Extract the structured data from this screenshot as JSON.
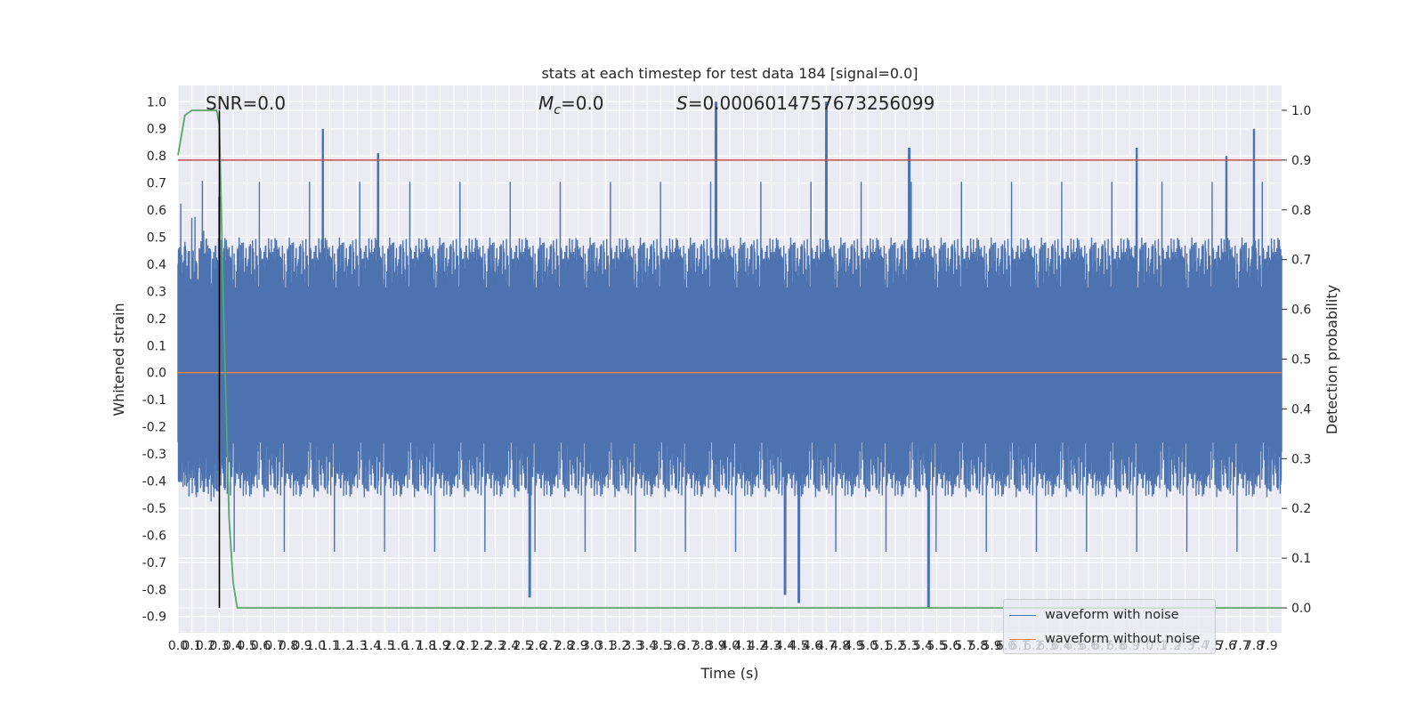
{
  "chart_data": {
    "type": "line",
    "title": "stats at each timestep for test data 184 [signal=0.0]",
    "xlabel": "Time (s)",
    "ylabel_left": "Whitened strain",
    "ylabel_right": "Detection probability",
    "xlim": [
      0.0,
      8.0
    ],
    "ylim_left": [
      -0.96,
      1.06
    ],
    "ylim_right": [
      -0.05,
      1.05
    ],
    "x_tick_labels": [
      "0.0",
      "0.1",
      "0.2",
      "0.3",
      "0.4",
      "0.5",
      "0.6",
      "0.7",
      "0.8",
      "0.9",
      "1.0",
      "1.1",
      "1.2",
      "1.3",
      "1.4",
      "1.5",
      "1.6",
      "1.7",
      "1.8",
      "1.9",
      "2.0",
      "2.1",
      "2.2",
      "2.3",
      "2.4",
      "2.5",
      "2.6",
      "2.7",
      "2.8",
      "2.9",
      "3.0",
      "3.1",
      "3.2",
      "3.3",
      "3.4",
      "3.5",
      "3.6",
      "3.7",
      "3.8",
      "3.9",
      "4.0",
      "4.1",
      "4.2",
      "4.3",
      "4.4",
      "4.5",
      "4.6",
      "4.7",
      "4.8",
      "4.9",
      "5.0",
      "5.1",
      "5.2",
      "5.3",
      "5.4",
      "5.5",
      "5.6",
      "5.7",
      "5.8",
      "5.9",
      "6.0",
      "6.1",
      "6.2",
      "6.3",
      "6.4",
      "6.5",
      "6.6",
      "6.7",
      "6.8",
      "6.9",
      "7.0",
      "7.1",
      "7.2",
      "7.3",
      "7.4",
      "7.5",
      "7.6",
      "7.7",
      "7.8",
      "7.9"
    ],
    "y_left_tick_labels": [
      "-0.9",
      "-0.8",
      "-0.7",
      "-0.6",
      "-0.5",
      "-0.4",
      "-0.3",
      "-0.2",
      "-0.1",
      "0.0",
      "0.1",
      "0.2",
      "0.3",
      "0.4",
      "0.5",
      "0.6",
      "0.7",
      "0.8",
      "0.9",
      "1.0"
    ],
    "y_right_tick_labels": [
      "0.0",
      "0.1",
      "0.2",
      "0.3",
      "0.4",
      "0.5",
      "0.6",
      "0.7",
      "0.8",
      "0.9",
      "1.0"
    ],
    "annotations": {
      "snr": "SNR=0.0",
      "mc": "=0.0",
      "mc_symbol": "M",
      "mc_subscript": "c",
      "s": "=0.0006014757673256099",
      "s_symbol": "S"
    },
    "threshold_right": 0.9,
    "marker_time": 0.3,
    "series": [
      {
        "name": "waveform with noise",
        "color": "#4c72b0",
        "description_type": "noise",
        "envelope_peaks": [
          {
            "x": 3.9,
            "y": 1.0
          },
          {
            "x": 4.7,
            "y": 1.0
          },
          {
            "x": 1.05,
            "y": 0.9
          },
          {
            "x": 7.8,
            "y": 0.9
          },
          {
            "x": 0.3,
            "y": 0.65
          },
          {
            "x": 7.6,
            "y": 0.8
          },
          {
            "x": 5.3,
            "y": 0.83
          },
          {
            "x": 6.95,
            "y": 0.83
          },
          {
            "x": 1.45,
            "y": 0.81
          },
          {
            "x": 5.44,
            "y": -0.87
          },
          {
            "x": 4.5,
            "y": -0.85
          },
          {
            "x": 2.55,
            "y": -0.83
          },
          {
            "x": 4.4,
            "y": -0.82
          }
        ]
      },
      {
        "name": "waveform without noise",
        "color": "#dd8452",
        "constant": 0.0
      },
      {
        "name": "detection probability",
        "color": "#55a868",
        "axis": "right",
        "x": [
          0.0,
          0.05,
          0.1,
          0.2,
          0.28,
          0.3,
          0.33,
          0.37,
          0.4,
          0.43,
          8.0
        ],
        "y": [
          0.91,
          0.99,
          1.0,
          1.0,
          1.0,
          0.97,
          0.6,
          0.18,
          0.05,
          0.0,
          0.0
        ]
      }
    ],
    "colors": {
      "axes_bg": "#eaeaf2",
      "grid": "#ffffff",
      "threshold": "#c44e52",
      "marker": "#000000"
    },
    "grid": true,
    "legend_position": "lower right"
  }
}
